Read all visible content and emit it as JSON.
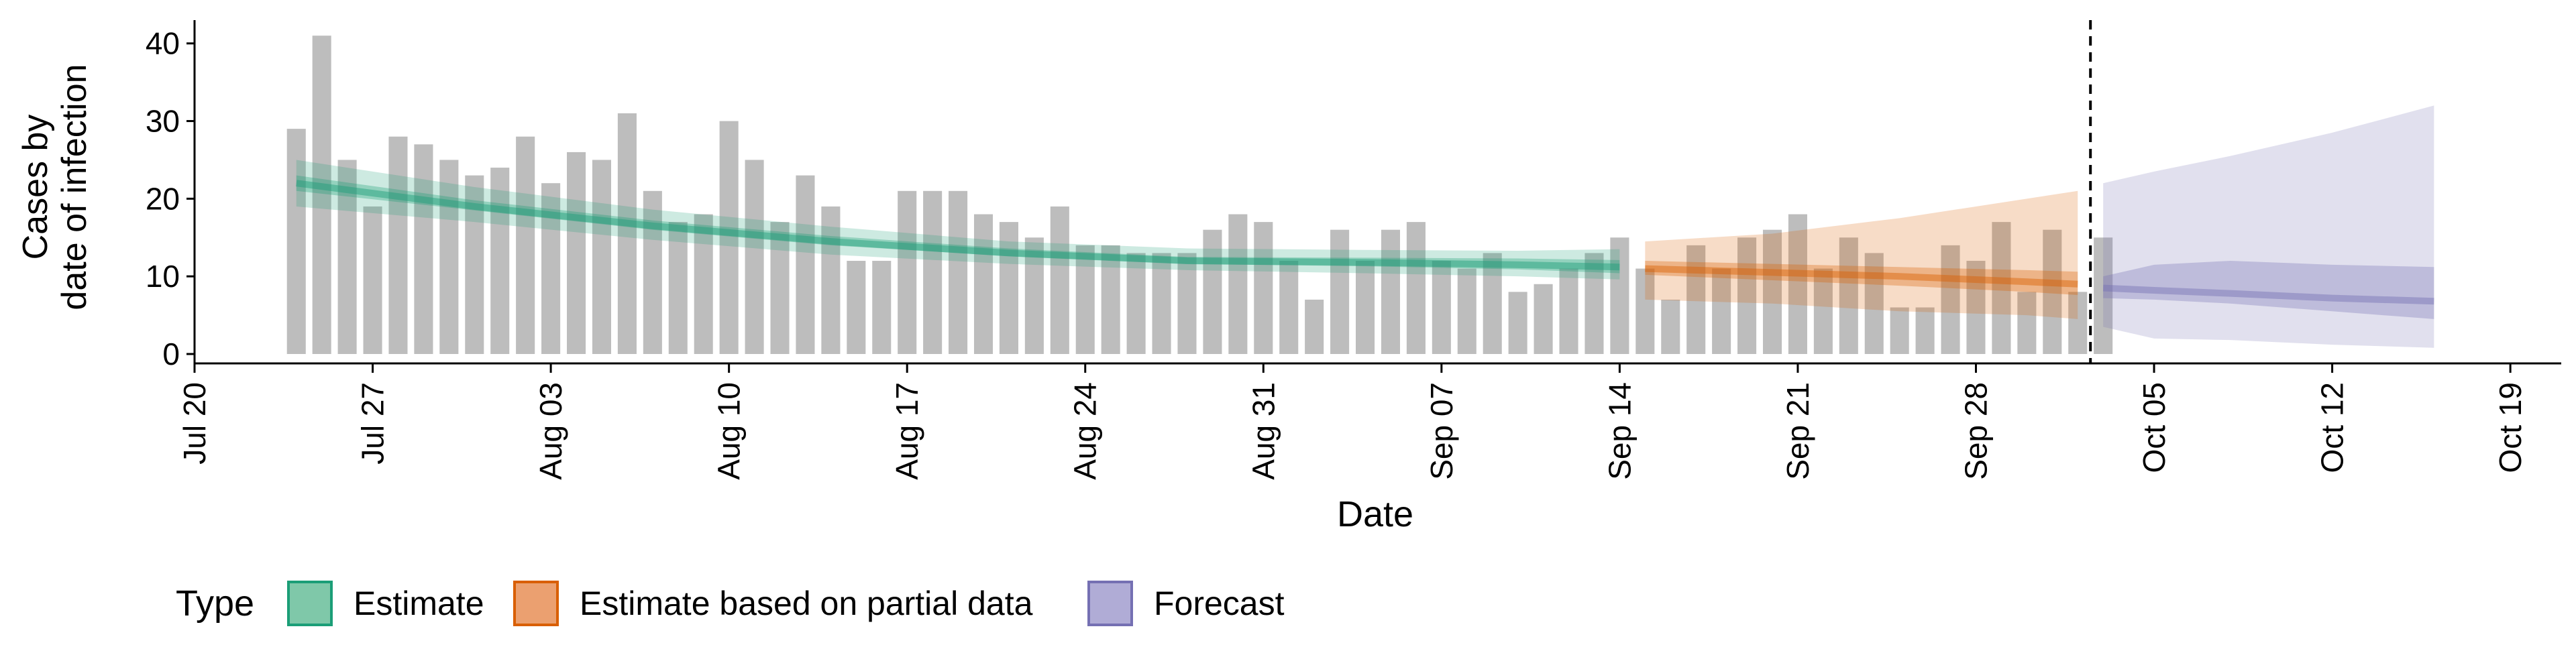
{
  "chart_data": {
    "type": "bar",
    "xlabel": "Date",
    "ylabel_lines": [
      "Cases by",
      "date of infection"
    ],
    "ylim": [
      0,
      43
    ],
    "y_ticks": [
      0,
      10,
      20,
      30,
      40
    ],
    "x_ticks": [
      {
        "date": "2020-07-20",
        "label": "Jul 20"
      },
      {
        "date": "2020-07-27",
        "label": "Jul 27"
      },
      {
        "date": "2020-08-03",
        "label": "Aug 03"
      },
      {
        "date": "2020-08-10",
        "label": "Aug 10"
      },
      {
        "date": "2020-08-17",
        "label": "Aug 17"
      },
      {
        "date": "2020-08-24",
        "label": "Aug 24"
      },
      {
        "date": "2020-08-31",
        "label": "Aug 31"
      },
      {
        "date": "2020-09-07",
        "label": "Sep 07"
      },
      {
        "date": "2020-09-14",
        "label": "Sep 14"
      },
      {
        "date": "2020-09-21",
        "label": "Sep 21"
      },
      {
        "date": "2020-09-28",
        "label": "Sep 28"
      },
      {
        "date": "2020-10-05",
        "label": "Oct 05"
      },
      {
        "date": "2020-10-12",
        "label": "Oct 12"
      },
      {
        "date": "2020-10-19",
        "label": "Oct 19"
      }
    ],
    "x_range": [
      "2020-07-20",
      "2020-10-21"
    ],
    "vline_date": "2020-10-02",
    "bar_dates": [
      "2020-07-24",
      "2020-10-02"
    ],
    "bars": [
      29,
      41,
      25,
      19,
      28,
      27,
      25,
      23,
      24,
      28,
      22,
      26,
      25,
      31,
      21,
      17,
      18,
      30,
      25,
      17,
      23,
      19,
      12,
      12,
      21,
      21,
      21,
      18,
      17,
      15,
      19,
      14,
      14,
      13,
      13,
      13,
      16,
      18,
      17,
      12,
      7,
      16,
      12,
      16,
      17,
      12,
      11,
      13,
      8,
      9,
      11,
      13,
      15,
      11,
      7,
      14,
      11,
      15,
      16,
      18,
      11,
      15,
      13,
      6,
      6,
      14,
      12,
      17,
      8,
      16,
      8,
      15
    ],
    "legend": {
      "title": "Type",
      "items": [
        {
          "label": "Estimate",
          "fill": "#7fc8a9",
          "stroke": "#1b9e77"
        },
        {
          "label": "Estimate based on partial data",
          "fill": "#eba070",
          "stroke": "#d95f02"
        },
        {
          "label": "Forecast",
          "fill": "#b0acd6",
          "stroke": "#7570b3"
        }
      ]
    },
    "series": [
      {
        "name": "Estimate",
        "color": "#1b9e77",
        "x": [
          "2020-07-24",
          "2020-07-31",
          "2020-08-07",
          "2020-08-14",
          "2020-08-21",
          "2020-08-28",
          "2020-09-04",
          "2020-09-10",
          "2020-09-14"
        ],
        "median": [
          22,
          19,
          16.5,
          14.5,
          13,
          12,
          11.8,
          11.5,
          11.2
        ],
        "inner": [
          [
            21,
            23
          ],
          [
            18.5,
            19.8
          ],
          [
            16,
            17.2
          ],
          [
            14,
            15.2
          ],
          [
            12.6,
            13.6
          ],
          [
            11.6,
            12.5
          ],
          [
            11.3,
            12.4
          ],
          [
            10.9,
            12.3
          ],
          [
            10.4,
            12.1
          ]
        ],
        "outer": [
          [
            19,
            25
          ],
          [
            17,
            21.5
          ],
          [
            14.7,
            18.6
          ],
          [
            12.8,
            16.4
          ],
          [
            11.6,
            14.5
          ],
          [
            10.8,
            13.6
          ],
          [
            10.4,
            13.4
          ],
          [
            10,
            13.3
          ],
          [
            9.6,
            13.5
          ]
        ]
      },
      {
        "name": "Estimate based on partial data",
        "color": "#d95f02",
        "x": [
          "2020-09-15",
          "2020-09-20",
          "2020-09-25",
          "2020-09-30",
          "2020-10-02"
        ],
        "median": [
          11,
          10.5,
          10,
          9.3,
          9
        ],
        "inner": [
          [
            10.2,
            12
          ],
          [
            9.5,
            11.6
          ],
          [
            8.8,
            11.2
          ],
          [
            8,
            10.8
          ],
          [
            7.6,
            10.6
          ]
        ],
        "outer": [
          [
            7,
            14.5
          ],
          [
            6.5,
            15.5
          ],
          [
            5.5,
            17.5
          ],
          [
            5,
            20
          ],
          [
            4.5,
            21
          ]
        ]
      },
      {
        "name": "Forecast",
        "color": "#7570b3",
        "x": [
          "2020-10-03",
          "2020-10-05",
          "2020-10-08",
          "2020-10-12",
          "2020-10-16"
        ],
        "median": [
          8.5,
          8.2,
          7.8,
          7.2,
          6.8
        ],
        "inner": [
          [
            7.2,
            10
          ],
          [
            7,
            11.5
          ],
          [
            6.5,
            12
          ],
          [
            5.5,
            11.5
          ],
          [
            4.5,
            11.2
          ]
        ],
        "outer": [
          [
            3.5,
            22
          ],
          [
            2,
            23.5
          ],
          [
            1.8,
            25.5
          ],
          [
            1.2,
            28.5
          ],
          [
            0.8,
            32
          ]
        ]
      }
    ]
  }
}
